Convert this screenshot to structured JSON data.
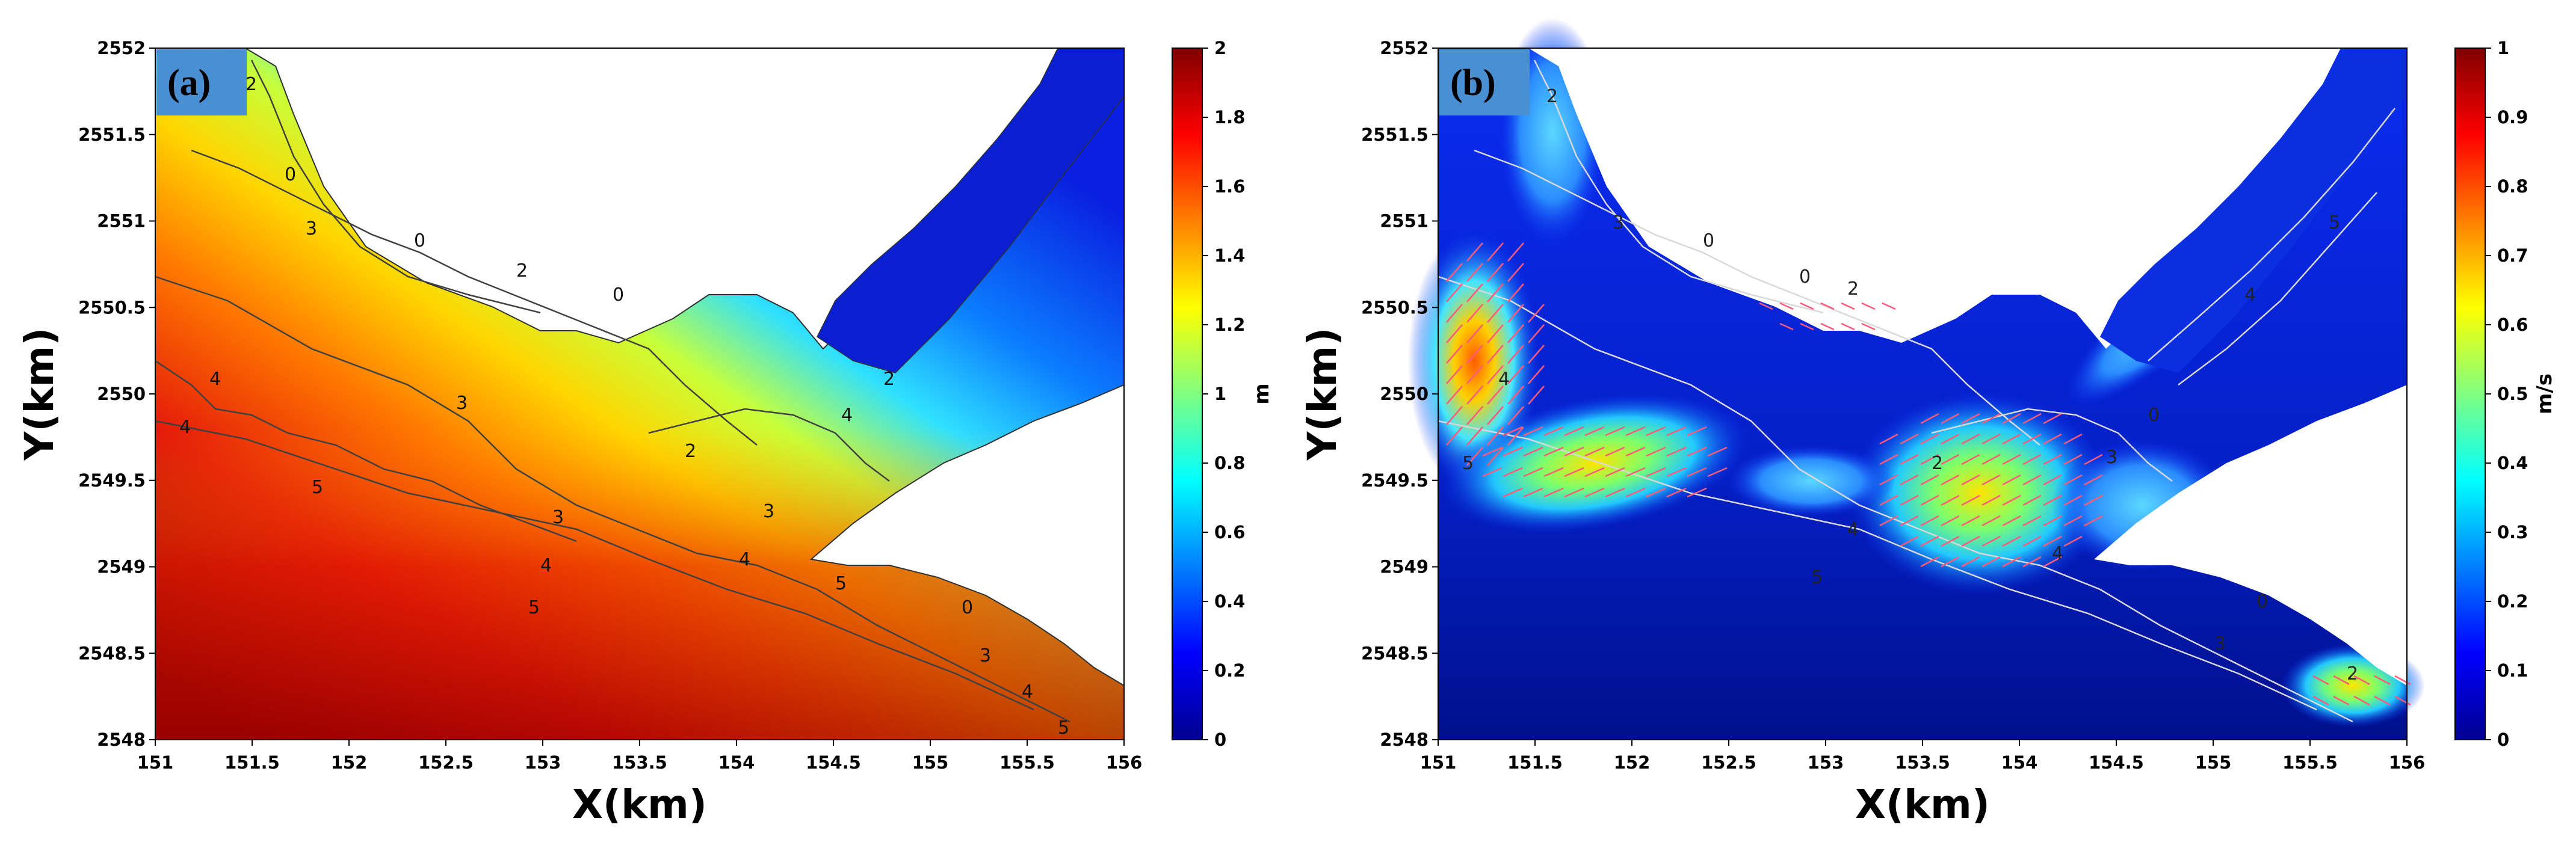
{
  "colors": {
    "land": "#ffffff",
    "panel_label_bg": "#4a8fd1",
    "contour_a": "#404040",
    "contour_b": "#d8d8d8",
    "vector_b": "#ff5a7a"
  },
  "chart_data": [
    {
      "type": "heatmap",
      "panel_label": "(a)",
      "xlabel": "X(km)",
      "ylabel": "Y(km)",
      "xlim": [
        151,
        156
      ],
      "ylim": [
        2548,
        2552
      ],
      "x_ticks": [
        "151",
        "151.5",
        "152",
        "152.5",
        "153",
        "153.5",
        "154",
        "154.5",
        "155",
        "155.5",
        "156"
      ],
      "y_ticks": [
        "2548",
        "2548.5",
        "2549",
        "2549.5",
        "2550",
        "2550.5",
        "2551",
        "2551.5",
        "2552"
      ],
      "colorbar": {
        "label": "m",
        "range": [
          0,
          2
        ],
        "ticks": [
          "0",
          "0.2",
          "0.4",
          "0.6",
          "0.8",
          "1",
          "1.2",
          "1.4",
          "1.6",
          "1.8",
          "2"
        ],
        "colormap": "jet"
      },
      "contour_labels": [
        "0",
        "2",
        "3",
        "4",
        "5"
      ],
      "contour_values": [
        0,
        2,
        3,
        4,
        5
      ]
    },
    {
      "type": "heatmap",
      "panel_label": "(b)",
      "xlabel": "X(km)",
      "ylabel": "Y(km)",
      "xlim": [
        151,
        156
      ],
      "ylim": [
        2548,
        2552
      ],
      "x_ticks": [
        "151",
        "151.5",
        "152",
        "152.5",
        "153",
        "153.5",
        "154",
        "154.5",
        "155",
        "155.5",
        "156"
      ],
      "y_ticks": [
        "2548",
        "2548.5",
        "2549",
        "2549.5",
        "2550",
        "2550.5",
        "2551",
        "2551.5",
        "2552"
      ],
      "colorbar": {
        "label": "m/s",
        "range": [
          0,
          1
        ],
        "ticks": [
          "0",
          "0.1",
          "0.2",
          "0.3",
          "0.4",
          "0.5",
          "0.6",
          "0.7",
          "0.8",
          "0.9",
          "1"
        ],
        "colormap": "jet"
      },
      "contour_labels": [
        "0",
        "2",
        "3",
        "4",
        "5"
      ],
      "contour_values": [
        0,
        2,
        3,
        4,
        5
      ]
    }
  ]
}
